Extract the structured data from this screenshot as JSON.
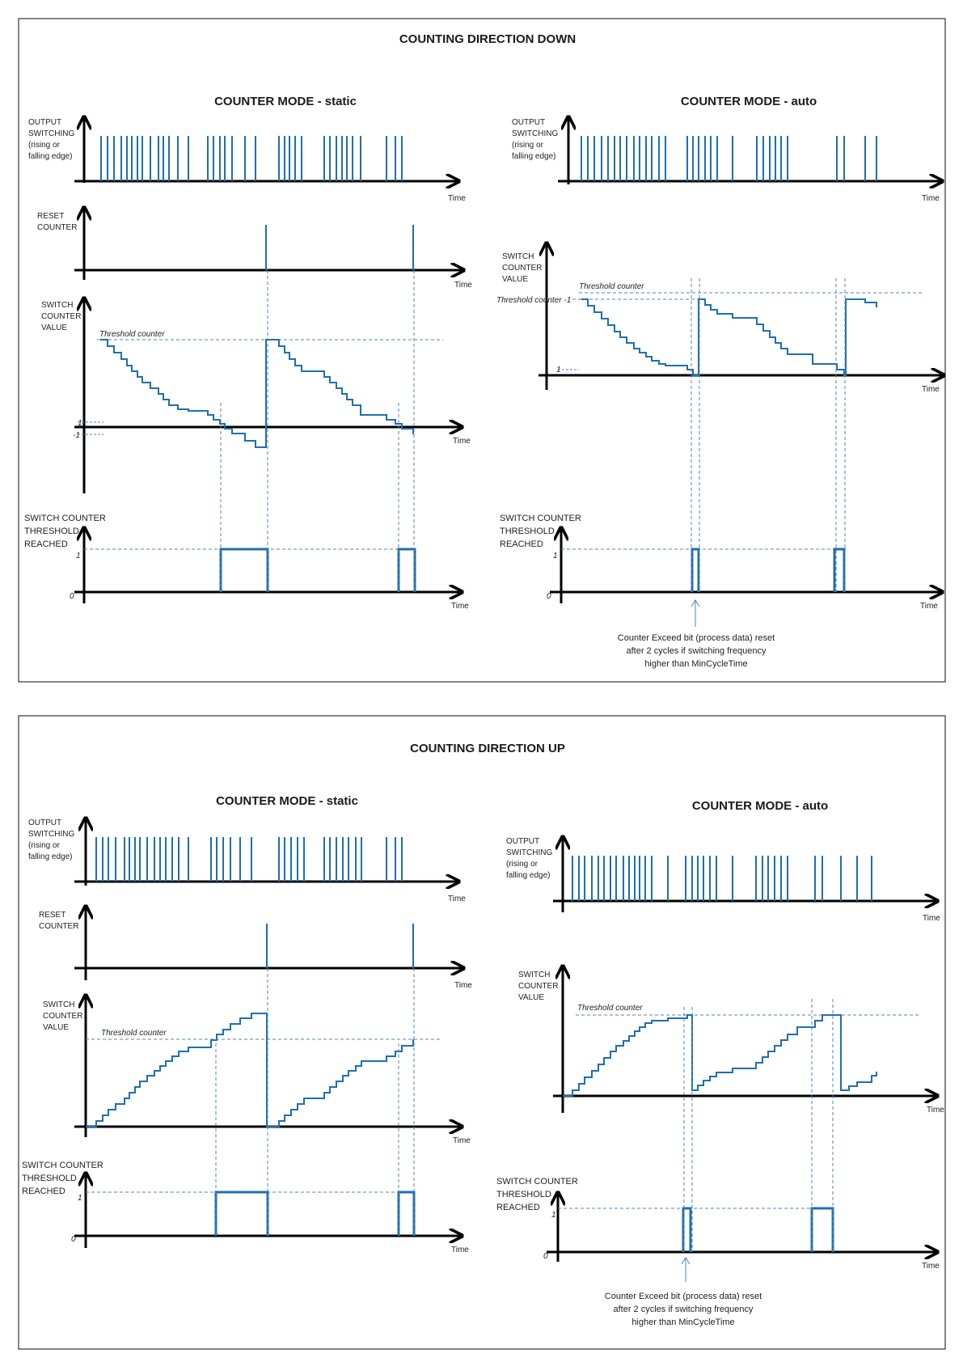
{
  "colors": {
    "signal": "#1f6fb0",
    "axis": "#000000",
    "frame": "#333333",
    "guide": "#4f86b8"
  },
  "panels": [
    {
      "title": "COUNTING DIRECTION DOWN",
      "static": {
        "mode_title": "COUNTER MODE - static",
        "output_label": [
          "OUTPUT",
          "SWITCHING",
          "(rising or",
          "falling edge)"
        ],
        "reset_label": [
          "RESET",
          "COUNTER"
        ],
        "value_label": [
          "SWITCH",
          "COUNTER",
          "VALUE"
        ],
        "threshold_counter": "Threshold counter",
        "tick_one": "1",
        "tick_minus_one": "-1",
        "reached_label": [
          "SWITCH COUNTER",
          "THRESHOLD",
          "REACHED"
        ],
        "level_one": "1",
        "level_zero": "0",
        "time": "Time"
      },
      "auto": {
        "mode_title": "COUNTER MODE - auto",
        "output_label": [
          "OUTPUT",
          "SWITCHING",
          "(rising or",
          "falling edge)"
        ],
        "value_label": [
          "SWITCH",
          "COUNTER",
          "VALUE"
        ],
        "threshold_counter": "Threshold counter",
        "threshold_minus_one": "Threshold counter -1",
        "tick_one": "1",
        "reached_label": [
          "SWITCH COUNTER",
          "THRESHOLD",
          "REACHED"
        ],
        "level_one": "1",
        "level_zero": "0",
        "time": "Time",
        "note": [
          "Counter Exceed bit (process data) reset",
          "after 2 cycles if  switching frequency",
          "higher than MinCycleTime"
        ]
      }
    },
    {
      "title": "COUNTING DIRECTION UP",
      "static": {
        "mode_title": "COUNTER MODE - static",
        "output_label": [
          "OUTPUT",
          "SWITCHING",
          "(rising or",
          "falling edge)"
        ],
        "reset_label": [
          "RESET",
          "COUNTER"
        ],
        "value_label": [
          "SWITCH",
          "COUNTER",
          "VALUE"
        ],
        "threshold_counter": "Threshold counter",
        "reached_label": [
          "SWITCH COUNTER",
          "THRESHOLD",
          "REACHED"
        ],
        "level_one": "1",
        "level_zero": "0",
        "time": "Time"
      },
      "auto": {
        "mode_title": "COUNTER MODE - auto",
        "output_label": [
          "OUTPUT",
          "SWITCHING",
          "(rising or",
          "falling edge)"
        ],
        "value_label": [
          "SWITCH",
          "COUNTER",
          "VALUE"
        ],
        "threshold_counter": "Threshold counter",
        "reached_label": [
          "SWITCH COUNTER",
          "THRESHOLD",
          "REACHED"
        ],
        "level_one": "1",
        "level_zero": "0",
        "time": "Time",
        "note": [
          "Counter Exceed bit (process data) reset",
          "after 2 cycles if  switching frequency",
          "higher than MinCycleTime"
        ]
      }
    }
  ]
}
